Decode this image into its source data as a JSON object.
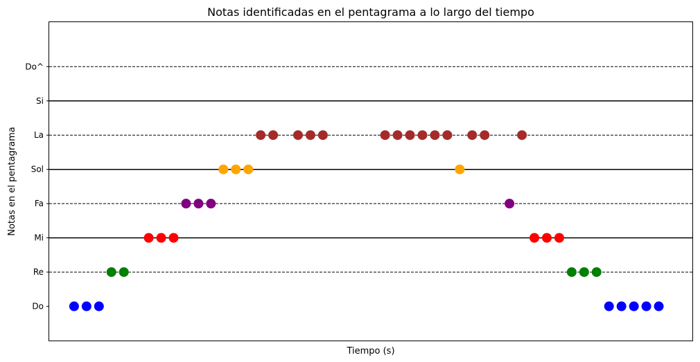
{
  "chart_data": {
    "type": "scatter",
    "title": "Notas identificadas en el pentagrama a lo largo del tiempo",
    "xlabel": "Tiempo (s)",
    "ylabel": "Notas en el pentagrama",
    "xlim": [
      0,
      51.7
    ],
    "ylim": [
      -1,
      8.3
    ],
    "y_ticks": [
      {
        "value": 0,
        "label": "Do"
      },
      {
        "value": 1,
        "label": "Re"
      },
      {
        "value": 2,
        "label": "Mi"
      },
      {
        "value": 3,
        "label": "Fa"
      },
      {
        "value": 4,
        "label": "Sol"
      },
      {
        "value": 5,
        "label": "La"
      },
      {
        "value": 6,
        "label": "Si"
      },
      {
        "value": 7,
        "label": "Do^"
      }
    ],
    "staff_lines": [
      {
        "y": 1,
        "style": "dashed"
      },
      {
        "y": 2,
        "style": "solid"
      },
      {
        "y": 3,
        "style": "dashed"
      },
      {
        "y": 4,
        "style": "solid"
      },
      {
        "y": 5,
        "style": "dashed"
      },
      {
        "y": 6,
        "style": "solid"
      },
      {
        "y": 7,
        "style": "dashed"
      }
    ],
    "note_colors": {
      "Do": "#0000ff",
      "Re": "#008000",
      "Mi": "#ff0000",
      "Fa": "#800080",
      "Sol": "#ffa500",
      "La": "#a52a2a"
    },
    "points": [
      {
        "x": 2,
        "y": 0,
        "note": "Do"
      },
      {
        "x": 3,
        "y": 0,
        "note": "Do"
      },
      {
        "x": 4,
        "y": 0,
        "note": "Do"
      },
      {
        "x": 5,
        "y": 1,
        "note": "Re"
      },
      {
        "x": 6,
        "y": 1,
        "note": "Re"
      },
      {
        "x": 8,
        "y": 2,
        "note": "Mi"
      },
      {
        "x": 9,
        "y": 2,
        "note": "Mi"
      },
      {
        "x": 10,
        "y": 2,
        "note": "Mi"
      },
      {
        "x": 11,
        "y": 3,
        "note": "Fa"
      },
      {
        "x": 12,
        "y": 3,
        "note": "Fa"
      },
      {
        "x": 13,
        "y": 3,
        "note": "Fa"
      },
      {
        "x": 14,
        "y": 4,
        "note": "Sol"
      },
      {
        "x": 15,
        "y": 4,
        "note": "Sol"
      },
      {
        "x": 16,
        "y": 4,
        "note": "Sol"
      },
      {
        "x": 17,
        "y": 5,
        "note": "La"
      },
      {
        "x": 18,
        "y": 5,
        "note": "La"
      },
      {
        "x": 20,
        "y": 5,
        "note": "La"
      },
      {
        "x": 21,
        "y": 5,
        "note": "La"
      },
      {
        "x": 22,
        "y": 5,
        "note": "La"
      },
      {
        "x": 27,
        "y": 5,
        "note": "La"
      },
      {
        "x": 28,
        "y": 5,
        "note": "La"
      },
      {
        "x": 29,
        "y": 5,
        "note": "La"
      },
      {
        "x": 30,
        "y": 5,
        "note": "La"
      },
      {
        "x": 31,
        "y": 5,
        "note": "La"
      },
      {
        "x": 32,
        "y": 5,
        "note": "La"
      },
      {
        "x": 33,
        "y": 4,
        "note": "Sol"
      },
      {
        "x": 34,
        "y": 5,
        "note": "La"
      },
      {
        "x": 35,
        "y": 5,
        "note": "La"
      },
      {
        "x": 37,
        "y": 3,
        "note": "Fa"
      },
      {
        "x": 38,
        "y": 5,
        "note": "La"
      },
      {
        "x": 39,
        "y": 2,
        "note": "Mi"
      },
      {
        "x": 40,
        "y": 2,
        "note": "Mi"
      },
      {
        "x": 41,
        "y": 2,
        "note": "Mi"
      },
      {
        "x": 42,
        "y": 1,
        "note": "Re"
      },
      {
        "x": 43,
        "y": 1,
        "note": "Re"
      },
      {
        "x": 44,
        "y": 1,
        "note": "Re"
      },
      {
        "x": 45,
        "y": 0,
        "note": "Do"
      },
      {
        "x": 46,
        "y": 0,
        "note": "Do"
      },
      {
        "x": 47,
        "y": 0,
        "note": "Do"
      },
      {
        "x": 48,
        "y": 0,
        "note": "Do"
      },
      {
        "x": 49,
        "y": 0,
        "note": "Do"
      }
    ],
    "grid": false,
    "x_ticks_visible": false
  }
}
